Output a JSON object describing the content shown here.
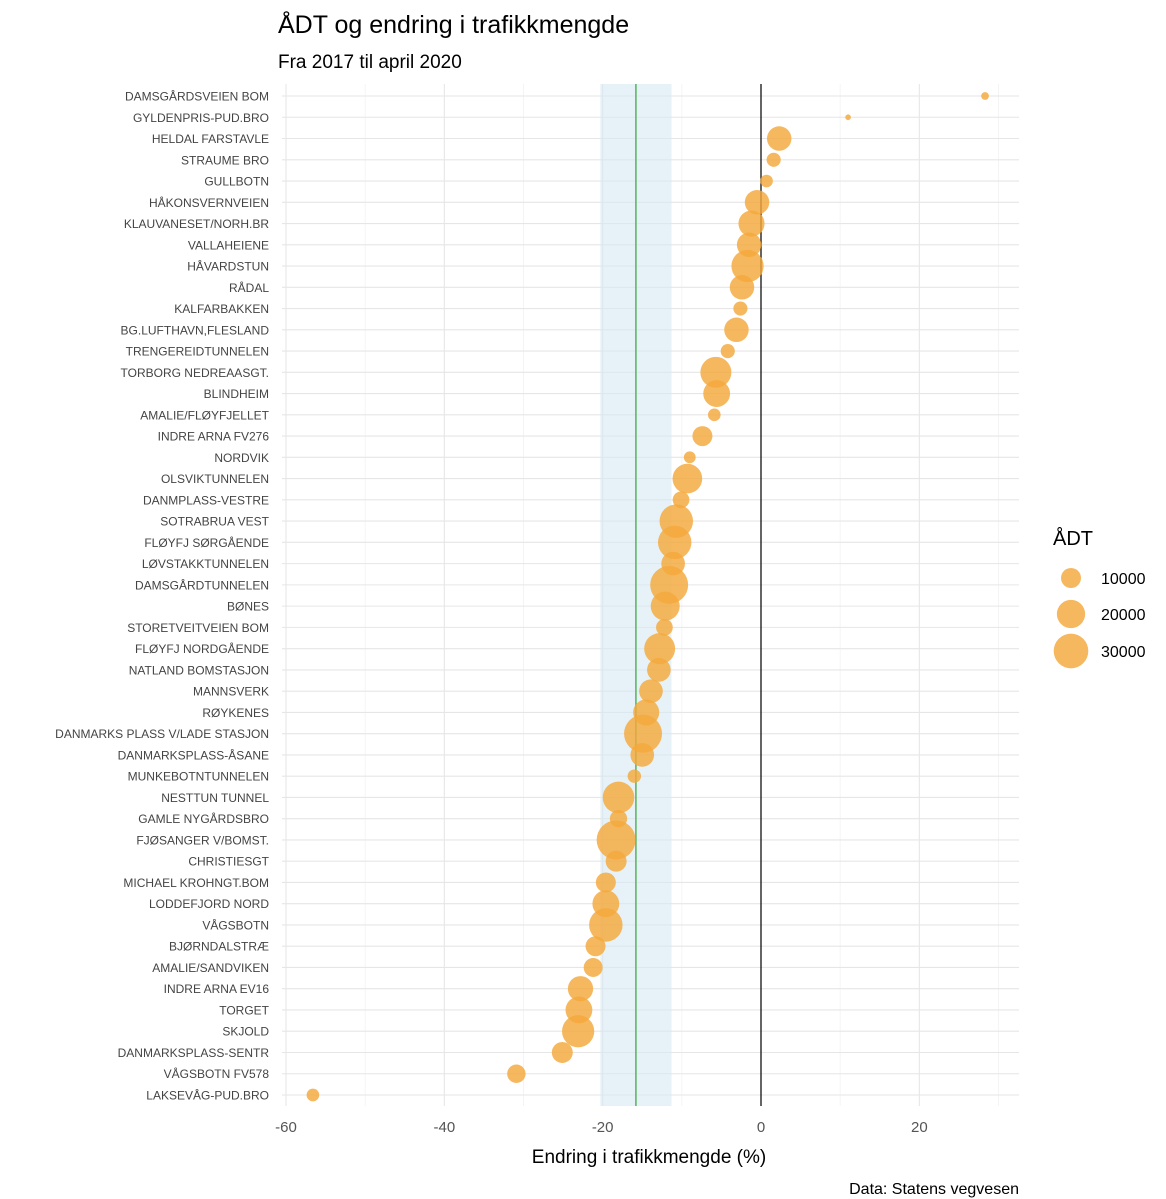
{
  "chart_data": {
    "type": "scatter",
    "title": "ÅDT og endring i trafikkmengde",
    "subtitle": "Fra 2017 til april 2020",
    "xlabel": "Endring i trafikkmengde (%)",
    "ylabel": "",
    "caption": "Data: Statens vegvesen",
    "xlim": [
      -62,
      32
    ],
    "x_ticks": [
      -60,
      -40,
      -20,
      0,
      20
    ],
    "x_tick_labels": [
      "-60",
      "-40",
      "-20",
      "0",
      "20"
    ],
    "grid": true,
    "zero_line": 0,
    "reference_line": -15.8,
    "reference_band": [
      -20.3,
      -11.3
    ],
    "colors": {
      "point": "#f4a83a",
      "band": "#d5eaf3",
      "reference_line": "#4caf50",
      "zero_line": "#000000"
    },
    "legend": {
      "title": "ÅDT",
      "position": "right",
      "sizes": [
        10000,
        20000,
        30000
      ],
      "labels": [
        "10000",
        "20000",
        "30000"
      ]
    },
    "points": [
      {
        "name": "DAMSGÅRDSVEIEN BOM",
        "x": 28.3,
        "adt": 1500
      },
      {
        "name": "GYLDENPRIS-PUD.BRO",
        "x": 11.0,
        "adt": 800
      },
      {
        "name": "HELDAL FARSTAVLE",
        "x": 2.3,
        "adt": 15000
      },
      {
        "name": "STRAUME BRO",
        "x": 1.6,
        "adt": 5000
      },
      {
        "name": "GULLBOTN",
        "x": 0.7,
        "adt": 4000
      },
      {
        "name": "HÅKONSVERNVEIEN",
        "x": -0.5,
        "adt": 15000
      },
      {
        "name": "KLAUVANESET/NORH.BR",
        "x": -1.2,
        "adt": 17000
      },
      {
        "name": "VALLAHEIENE",
        "x": -1.5,
        "adt": 15000
      },
      {
        "name": "HÅVARDSTUN",
        "x": -1.7,
        "adt": 26000
      },
      {
        "name": "RÅDAL",
        "x": -2.4,
        "adt": 15000
      },
      {
        "name": "KALFARBAKKEN",
        "x": -2.6,
        "adt": 5000
      },
      {
        "name": "BG.LUFTHAVN,FLESLAND",
        "x": -3.1,
        "adt": 15000
      },
      {
        "name": "TRENGEREIDTUNNELEN",
        "x": -4.2,
        "adt": 5000
      },
      {
        "name": "TORBORG NEDREAASGT.",
        "x": -5.7,
        "adt": 24000
      },
      {
        "name": "BLINDHEIM",
        "x": -5.6,
        "adt": 18000
      },
      {
        "name": "AMALIE/FLØYFJELLET",
        "x": -5.9,
        "adt": 4000
      },
      {
        "name": "INDRE ARNA FV276",
        "x": -7.4,
        "adt": 10000
      },
      {
        "name": "NORDVIK",
        "x": -9.0,
        "adt": 3500
      },
      {
        "name": "OLSVIKTUNNELEN",
        "x": -9.3,
        "adt": 22000
      },
      {
        "name": "DANMPLASS-VESTRE",
        "x": -10.1,
        "adt": 7000
      },
      {
        "name": "SOTRABRUA VEST",
        "x": -10.7,
        "adt": 28000
      },
      {
        "name": "FLØYFJ SØRGÅENDE",
        "x": -10.9,
        "adt": 28000
      },
      {
        "name": "LØVSTAKKTUNNELEN",
        "x": -11.1,
        "adt": 14000
      },
      {
        "name": "DAMSGÅRDTUNNELEN",
        "x": -11.6,
        "adt": 36000
      },
      {
        "name": "BØNES",
        "x": -12.1,
        "adt": 21000
      },
      {
        "name": "STORETVEITVEIEN BOM",
        "x": -12.2,
        "adt": 7000
      },
      {
        "name": "FLØYFJ NORDGÅENDE",
        "x": -12.8,
        "adt": 24000
      },
      {
        "name": "NATLAND BOMSTASJON",
        "x": -12.9,
        "adt": 14000
      },
      {
        "name": "MANNSVERK",
        "x": -13.9,
        "adt": 14000
      },
      {
        "name": "RØYKENES",
        "x": -14.5,
        "adt": 17000
      },
      {
        "name": "DANMARKS PLASS V/LADE STASJON",
        "x": -14.9,
        "adt": 36000
      },
      {
        "name": "DANMARKSPLASS-ÅSANE",
        "x": -15.0,
        "adt": 14000
      },
      {
        "name": "MUNKEBOTNTUNNELEN",
        "x": -16.0,
        "adt": 4500
      },
      {
        "name": "NESTTUN TUNNEL",
        "x": -18.0,
        "adt": 25000
      },
      {
        "name": "GAMLE NYGÅRDSBRO",
        "x": -18.0,
        "adt": 7500
      },
      {
        "name": "FJØSANGER V/BOMST.",
        "x": -18.3,
        "adt": 38000
      },
      {
        "name": "CHRISTIESGT",
        "x": -18.3,
        "adt": 11000
      },
      {
        "name": "MICHAEL KROHNGT.BOM",
        "x": -19.6,
        "adt": 10000
      },
      {
        "name": "LODDEFJORD NORD",
        "x": -19.6,
        "adt": 18000
      },
      {
        "name": "VÅGSBOTN",
        "x": -19.6,
        "adt": 28000
      },
      {
        "name": "BJØRNDALSTRÆ",
        "x": -20.9,
        "adt": 10000
      },
      {
        "name": "AMALIE/SANDVIKEN",
        "x": -21.2,
        "adt": 9000
      },
      {
        "name": "INDRE ARNA EV16",
        "x": -22.8,
        "adt": 16000
      },
      {
        "name": "TORGET",
        "x": -23.0,
        "adt": 18000
      },
      {
        "name": "SKJOLD",
        "x": -23.1,
        "adt": 26000
      },
      {
        "name": "DANMARKSPLASS-SENTR",
        "x": -25.1,
        "adt": 11000
      },
      {
        "name": "VÅGSBOTN FV578",
        "x": -30.9,
        "adt": 8500
      },
      {
        "name": "LAKSEVÅG-PUD.BRO",
        "x": -56.6,
        "adt": 4000
      }
    ]
  }
}
